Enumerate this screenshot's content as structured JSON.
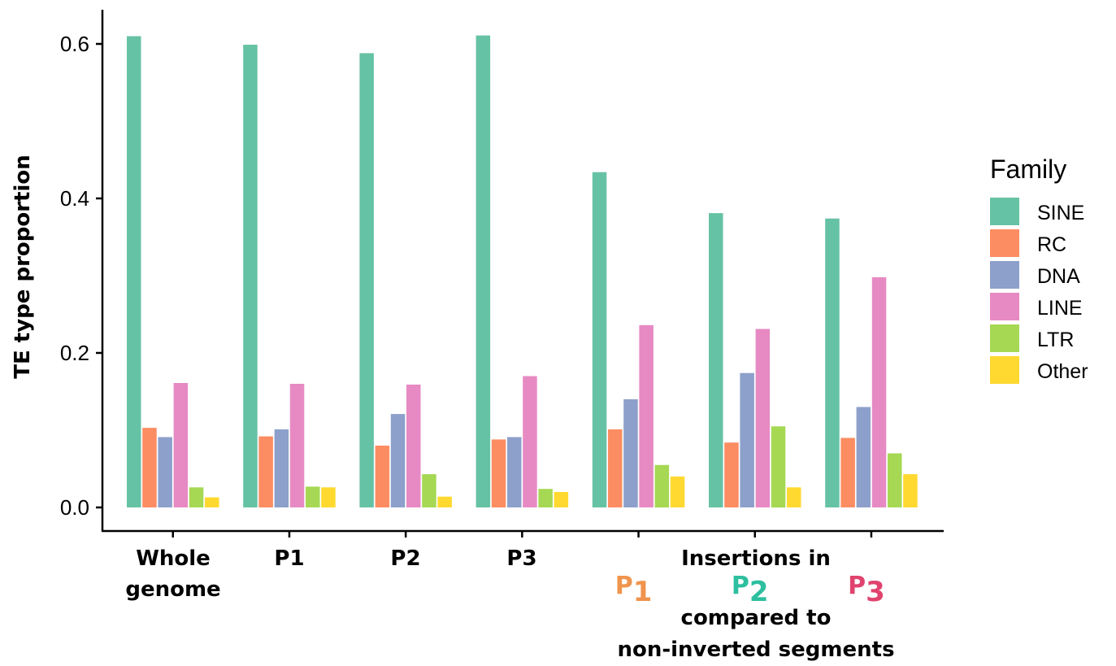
{
  "chart_data": {
    "type": "bar",
    "ylabel": "TE type proportion",
    "ylim": [
      0,
      0.64
    ],
    "yticks": [
      "0.0",
      "0.2",
      "0.4",
      "0.6"
    ],
    "grid": false,
    "legend": {
      "title": "Family",
      "placement": "right"
    },
    "categories": [
      "Whole genome",
      "P1",
      "P2",
      "P3",
      "P1 insertions",
      "P2 insertions",
      "P3 insertions"
    ],
    "series": [
      {
        "name": "SINE",
        "color": "#66c2a5",
        "values": [
          0.61,
          0.599,
          0.588,
          0.611,
          0.434,
          0.381,
          0.374
        ]
      },
      {
        "name": "RC",
        "color": "#fc8d62",
        "values": [
          0.103,
          0.092,
          0.08,
          0.088,
          0.101,
          0.084,
          0.09
        ]
      },
      {
        "name": "DNA",
        "color": "#8da0cb",
        "values": [
          0.091,
          0.101,
          0.121,
          0.091,
          0.14,
          0.174,
          0.13
        ]
      },
      {
        "name": "LINE",
        "color": "#e78ac3",
        "values": [
          0.161,
          0.16,
          0.159,
          0.17,
          0.236,
          0.231,
          0.298
        ]
      },
      {
        "name": "LTR",
        "color": "#a6d854",
        "values": [
          0.026,
          0.027,
          0.043,
          0.024,
          0.055,
          0.105,
          0.07
        ]
      },
      {
        "name": "Other",
        "color": "#ffd92f",
        "values": [
          0.013,
          0.026,
          0.014,
          0.02,
          0.04,
          0.026,
          0.043
        ]
      }
    ],
    "xlabels": {
      "whole_genome_line1": "Whole",
      "whole_genome_line2": "genome",
      "p1": "P1",
      "p2": "P2",
      "p3": "P3",
      "insertions_line1": "Insertions in",
      "insertions_line2": "compared to",
      "insertions_line3": "non-inverted segments"
    },
    "insertion_markers": [
      {
        "letter": "P",
        "sub": "1",
        "color": "#f0944d"
      },
      {
        "letter": "P",
        "sub": "2",
        "color": "#2dbf9f"
      },
      {
        "letter": "P",
        "sub": "3",
        "color": "#e0446e"
      }
    ]
  }
}
